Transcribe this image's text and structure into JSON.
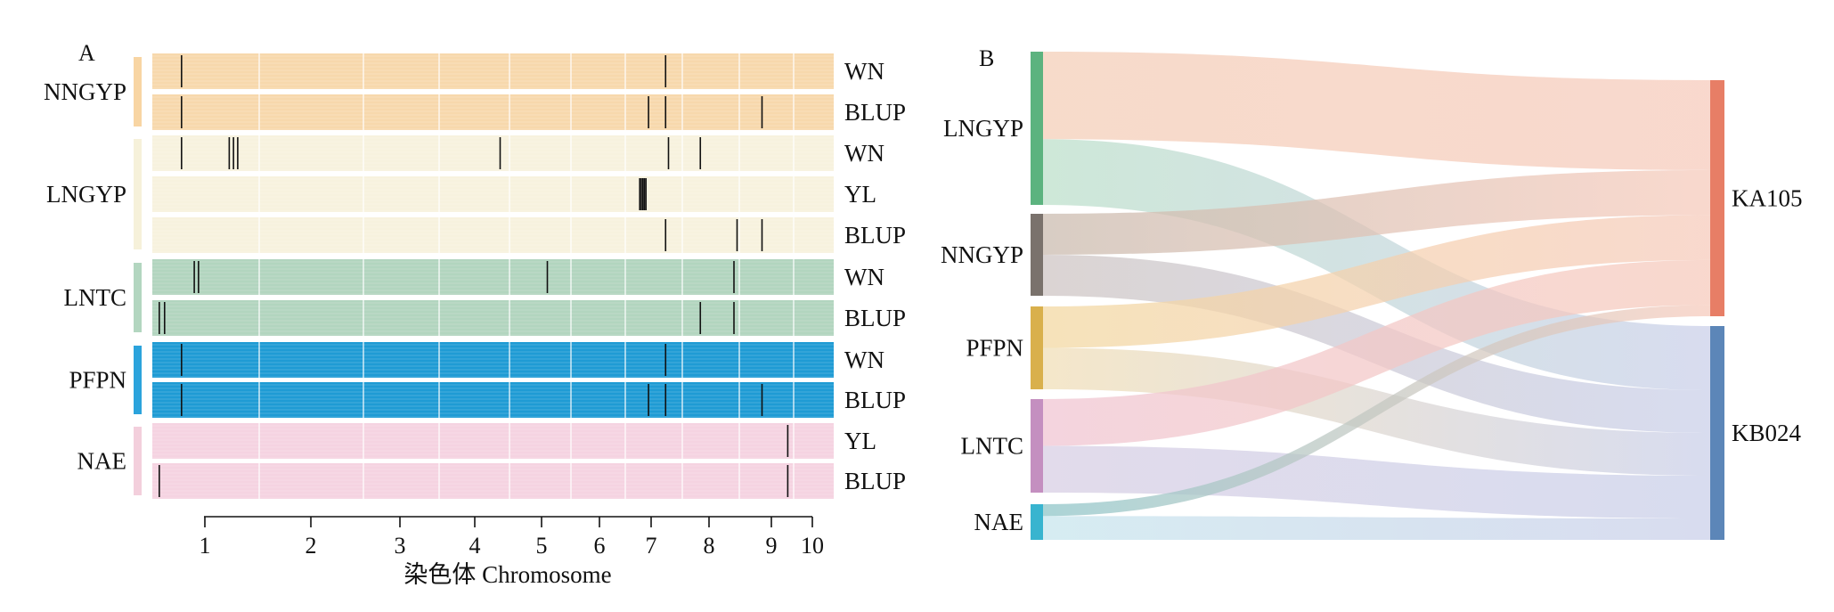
{
  "panel_a": {
    "letter": "A",
    "chart_data": {
      "type": "heatmap",
      "xlabel": "染色体 Chromosome",
      "ylabel": "",
      "x_ticks": [
        "1",
        "2",
        "3",
        "4",
        "5",
        "6",
        "7",
        "8",
        "9",
        "10"
      ],
      "xlim": [
        0.5,
        10.3
      ],
      "grid": true,
      "groups": [
        {
          "name": "NNGYP",
          "color": "#f7d8ac",
          "bar_color": "#f8d5a3",
          "tracks": [
            {
              "label": "WN",
              "markers": [
                0.78,
                7.25
              ]
            },
            {
              "label": "BLUP",
              "markers": [
                0.78,
                6.95,
                7.25,
                8.85
              ]
            }
          ]
        },
        {
          "name": "LNGYP",
          "color": "#f7f2de",
          "bar_color": "#f6f1da",
          "tracks": [
            {
              "label": "WN",
              "markers": [
                0.78,
                1.23,
                1.27,
                1.31,
                4.38,
                7.3,
                7.85
              ]
            },
            {
              "label": "YL",
              "markers": [
                6.78,
                6.81,
                6.84,
                6.87,
                6.9
              ]
            },
            {
              "label": "BLUP",
              "markers": [
                7.25,
                8.45,
                8.85
              ]
            }
          ]
        },
        {
          "name": "LNTC",
          "color": "#b2d5bf",
          "bar_color": "#b3d6c0",
          "tracks": [
            {
              "label": "WN",
              "markers": [
                0.9,
                0.94,
                5.1,
                8.4
              ]
            },
            {
              "label": "BLUP",
              "markers": [
                0.57,
                0.62,
                7.85,
                8.4
              ]
            }
          ]
        },
        {
          "name": "PFPN",
          "color": "#1f9bd4",
          "bar_color": "#2ba3dc",
          "tracks": [
            {
              "label": "WN",
              "markers": [
                0.78,
                7.25
              ]
            },
            {
              "label": "BLUP",
              "markers": [
                0.78,
                6.95,
                7.25,
                8.85
              ]
            }
          ]
        },
        {
          "name": "NAE",
          "color": "#f5d3e1",
          "bar_color": "#f3cfdc",
          "tracks": [
            {
              "label": "YL",
              "markers": [
                9.4
              ]
            },
            {
              "label": "BLUP",
              "markers": [
                0.57,
                9.4
              ]
            }
          ]
        }
      ]
    }
  },
  "panel_b": {
    "letter": "B",
    "chart_data": {
      "type": "sankey",
      "sources": [
        {
          "name": "LNGYP",
          "color": "#5cb37f"
        },
        {
          "name": "NNGYP",
          "color": "#7a726c"
        },
        {
          "name": "PFPN",
          "color": "#d9b04c"
        },
        {
          "name": "LNTC",
          "color": "#c48fc0"
        },
        {
          "name": "NAE",
          "color": "#38b4cf"
        }
      ],
      "targets": [
        {
          "name": "KA105",
          "color": "#e77e66"
        },
        {
          "name": "KB024",
          "color": "#5c86b8"
        }
      ],
      "links": [
        {
          "source": "LNGYP",
          "target": "KA105",
          "value": 4,
          "color": "#f4cfb9"
        },
        {
          "source": "LNGYP",
          "target": "KB024",
          "value": 3,
          "color": "#bde0cb"
        },
        {
          "source": "NNGYP",
          "target": "KA105",
          "value": 2,
          "color": "#cbbcb0"
        },
        {
          "source": "NNGYP",
          "target": "KB024",
          "value": 2,
          "color": "#cfc6c4"
        },
        {
          "source": "PFPN",
          "target": "KA105",
          "value": 2,
          "color": "#f3d9a3"
        },
        {
          "source": "PFPN",
          "target": "KB024",
          "value": 2,
          "color": "#f1dfb8"
        },
        {
          "source": "LNTC",
          "target": "KA105",
          "value": 2,
          "color": "#f0c6d3"
        },
        {
          "source": "LNTC",
          "target": "KB024",
          "value": 2,
          "color": "#d8cfe4"
        },
        {
          "source": "NAE",
          "target": "KA105",
          "value": 0.5,
          "color": "#8fc6c9"
        },
        {
          "source": "NAE",
          "target": "KB024",
          "value": 1,
          "color": "#c9e6ee"
        }
      ]
    }
  }
}
